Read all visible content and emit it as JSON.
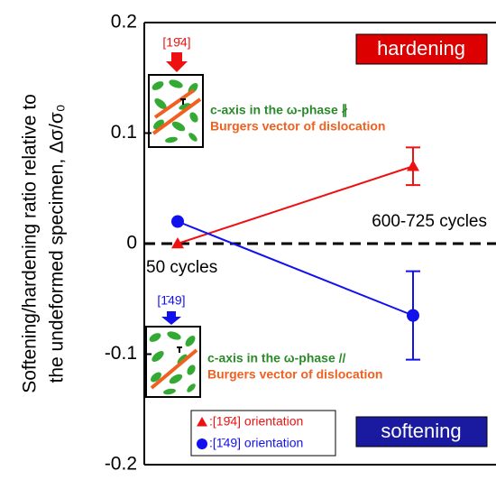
{
  "chart_data": {
    "type": "line",
    "y_label_lines": [
      "Softening/hardening ratio relative to",
      "the undeformed specimen, Δσ/σ₀"
    ],
    "categories": [
      null,
      null
    ],
    "series": [
      {
        "name": ":[19̄4] orientation",
        "color": "#ee1111",
        "marker": "triangle",
        "values": [
          0,
          0.07
        ],
        "errors": [
          null,
          0.017
        ]
      },
      {
        "name": ":[1̄49] orientation",
        "color": "#1111ee",
        "marker": "circle",
        "values": [
          0.02,
          -0.065
        ],
        "errors": [
          null,
          0.04
        ]
      }
    ],
    "ylim": [
      -0.2,
      0.2
    ],
    "yticks": [
      -0.2,
      -0.1,
      0,
      0.1,
      0.2
    ],
    "reference_line": 0,
    "annotations": {
      "hardening": "hardening",
      "softening": "softening",
      "late_cycles": "600-725 cycles",
      "early_cycles": "50 cycles"
    },
    "insets": [
      {
        "direction": "[19̄4]",
        "c_axis": "c-axis in the ω-phase ∦",
        "burgers": "Burgers vector of dislocation"
      },
      {
        "direction": "[1̄49]",
        "c_axis": "c-axis in the ω-phase //",
        "burgers": "Burgers vector of dislocation"
      }
    ],
    "legend": "bottom"
  }
}
